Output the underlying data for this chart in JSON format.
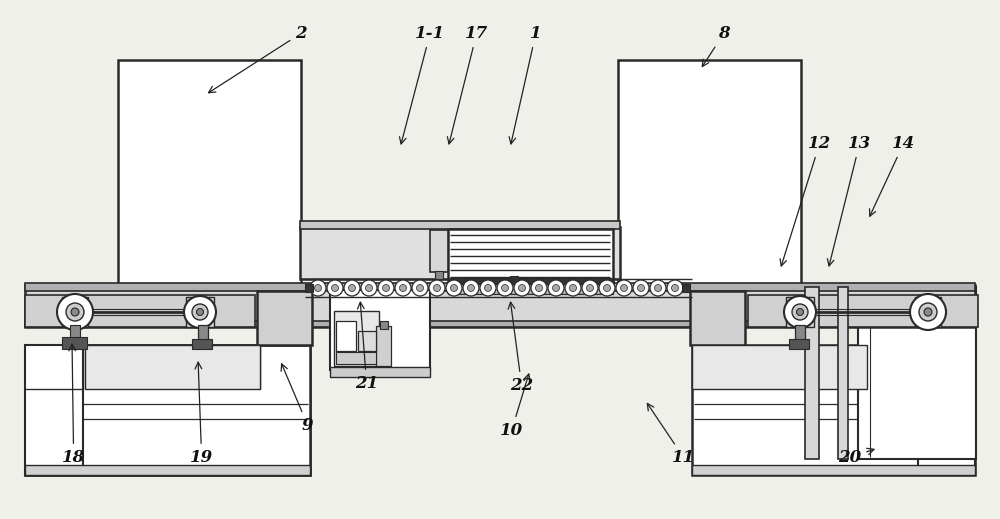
{
  "bg_color": "#f0f0eb",
  "line_color": "#2a2a2a",
  "figsize": [
    10.0,
    5.19
  ],
  "dpi": 100,
  "annotations": [
    [
      "2",
      295,
      38,
      205,
      95
    ],
    [
      "1-1",
      415,
      38,
      400,
      148
    ],
    [
      "17",
      465,
      38,
      448,
      148
    ],
    [
      "1",
      530,
      38,
      510,
      148
    ],
    [
      "8",
      718,
      38,
      700,
      70
    ],
    [
      "12",
      808,
      148,
      780,
      270
    ],
    [
      "13",
      848,
      148,
      828,
      270
    ],
    [
      "14",
      892,
      148,
      868,
      220
    ],
    [
      "9",
      302,
      430,
      280,
      360
    ],
    [
      "10",
      500,
      435,
      530,
      370
    ],
    [
      "11",
      672,
      462,
      645,
      400
    ],
    [
      "18",
      62,
      462,
      72,
      340
    ],
    [
      "19",
      190,
      462,
      198,
      358
    ],
    [
      "20",
      838,
      462,
      878,
      448
    ],
    [
      "21",
      355,
      388,
      360,
      298
    ],
    [
      "22",
      510,
      390,
      510,
      298
    ]
  ]
}
